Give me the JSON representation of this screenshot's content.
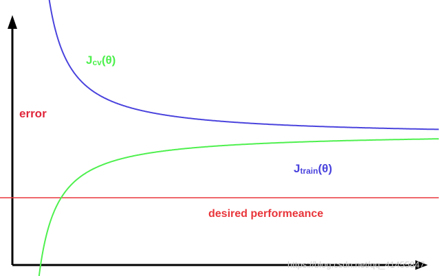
{
  "chart_data": {
    "type": "line",
    "title": "",
    "xlabel": "",
    "ylabel": "error",
    "grid": false,
    "series": [
      {
        "name": "Jcv(θ)",
        "label_main": "J",
        "label_sub": "cv",
        "label_tail": "(θ)",
        "color": "#4ef04e",
        "shape": "decreasing, asymptotic from above"
      },
      {
        "name": "Jtrain(θ)",
        "label_main": "J",
        "label_sub": "train",
        "label_tail": "(θ)",
        "color": "#4a43dd",
        "shape": "increasing, asymptotic from below"
      }
    ],
    "reference_lines": [
      {
        "name": "desired performeance",
        "label": "desired performeance",
        "orientation": "horizontal",
        "color": "#e8353a"
      }
    ],
    "axis_label_color": "#e0263a",
    "axis_color": "#000000"
  },
  "watermark": "https://blog.csdn.net/qq_41455847"
}
